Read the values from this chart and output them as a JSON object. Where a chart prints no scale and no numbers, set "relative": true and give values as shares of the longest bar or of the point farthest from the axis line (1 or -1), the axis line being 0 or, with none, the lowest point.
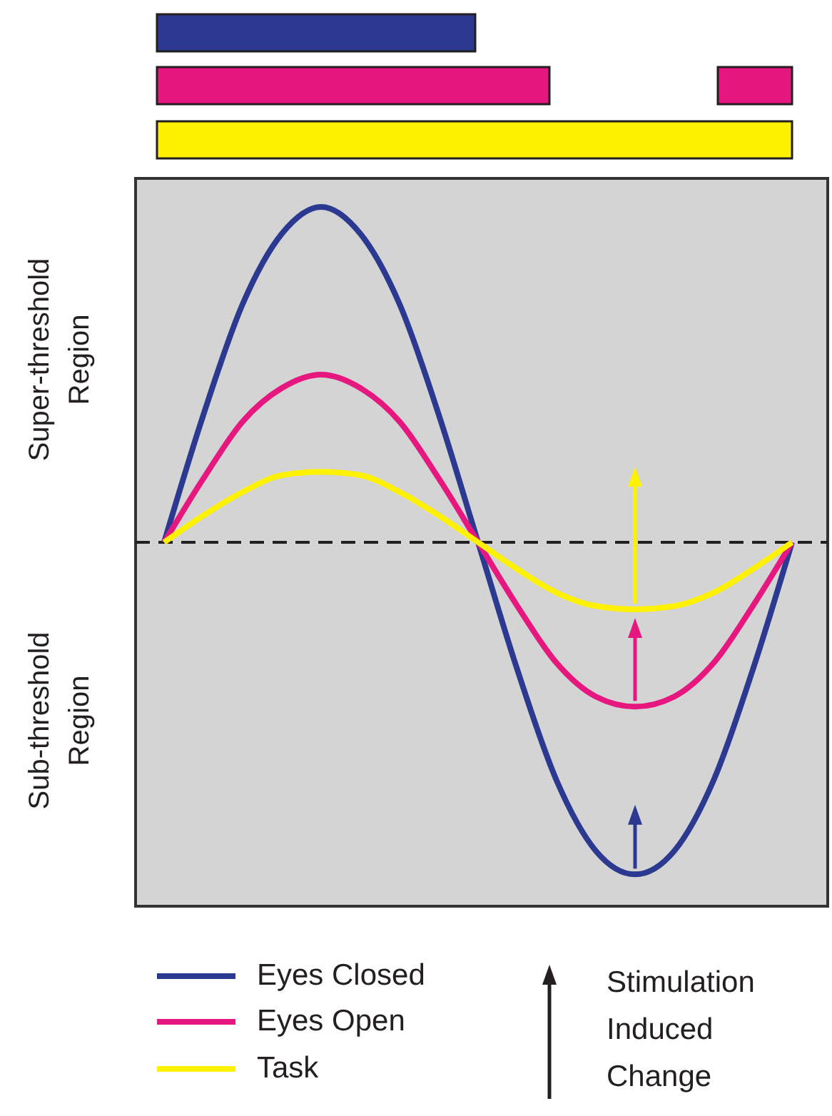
{
  "chart_data": {
    "type": "line",
    "relative": true,
    "categories": [
      null,
      null,
      null,
      null,
      null,
      null,
      null,
      null,
      null,
      null,
      null,
      null,
      null,
      null,
      null,
      null,
      null
    ],
    "series": [
      {
        "name": "Eyes Closed",
        "color": "#2b3990",
        "values": [
          0,
          0.38,
          0.71,
          0.92,
          1,
          0.92,
          0.71,
          0.38,
          0,
          -0.38,
          -0.71,
          -0.92,
          -0.99,
          -0.92,
          -0.71,
          -0.38,
          0
        ]
      },
      {
        "name": "Eyes Open",
        "color": "#e6177e",
        "values": [
          0,
          0.19,
          0.36,
          0.46,
          0.5,
          0.46,
          0.36,
          0.19,
          0,
          -0.19,
          -0.36,
          -0.46,
          -0.49,
          -0.46,
          -0.36,
          -0.19,
          0
        ]
      },
      {
        "name": "Task",
        "color": "#fff200",
        "values": [
          0,
          0.08,
          0.15,
          0.2,
          0.21,
          0.2,
          0.15,
          0.08,
          0,
          -0.08,
          -0.15,
          -0.19,
          -0.2,
          -0.19,
          -0.15,
          -0.08,
          0
        ]
      }
    ],
    "ref_lines": [
      {
        "axis": "y",
        "value": 0,
        "color": "#231f20",
        "line_style": "dashed"
      }
    ],
    "annotations": [
      "Super-threshold Region",
      "Sub-threshold Region",
      "Stimulation Induced Change"
    ],
    "legend": "bottom",
    "marker": "none",
    "line_style": "solid"
  }
}
